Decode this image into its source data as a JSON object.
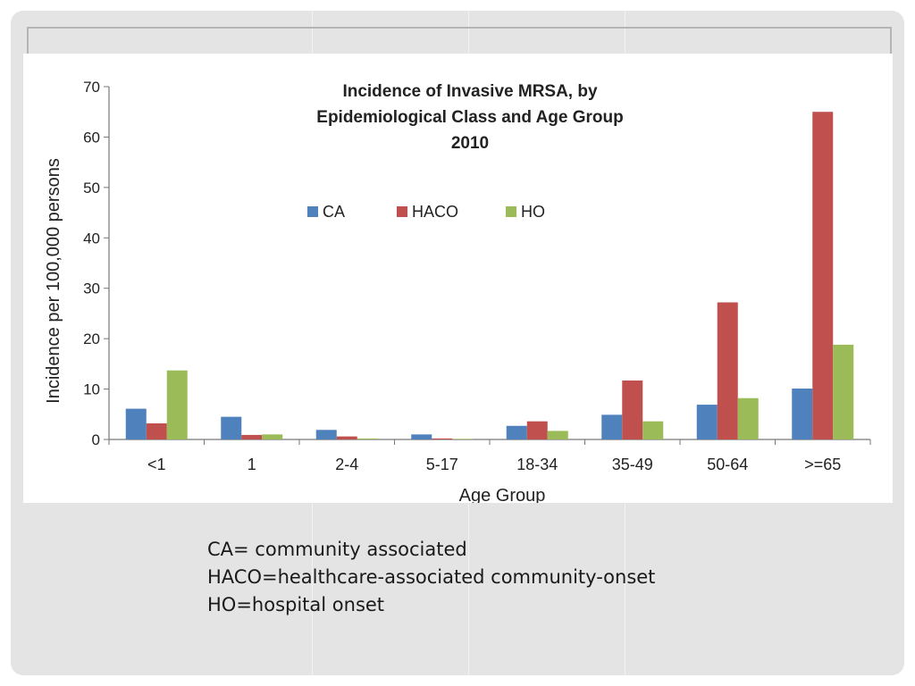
{
  "chart_data": {
    "type": "bar",
    "title_lines": [
      "Incidence of Invasive MRSA, by",
      "Epidemiological Class and Age Group",
      "2010"
    ],
    "xlabel": "Age Group",
    "ylabel": "Incidence per 100,000 persons",
    "categories": [
      "<1",
      "1",
      "2-4",
      "5-17",
      "18-34",
      "35-49",
      "50-64",
      ">=65"
    ],
    "series": [
      {
        "name": "CA",
        "color": "#4f81bd",
        "values": [
          6.1,
          4.5,
          1.9,
          1.0,
          2.7,
          4.9,
          6.9,
          10.1
        ]
      },
      {
        "name": "HACO",
        "color": "#c0504d",
        "values": [
          3.2,
          0.9,
          0.6,
          0.2,
          3.6,
          11.7,
          27.2,
          65.0
        ]
      },
      {
        "name": "HO",
        "color": "#9bbb59",
        "values": [
          13.7,
          1.0,
          0.2,
          0.1,
          1.7,
          3.6,
          8.2,
          18.8
        ]
      }
    ],
    "ylim": [
      0,
      70
    ],
    "yticks": [
      0,
      10,
      20,
      30,
      40,
      50,
      60,
      70
    ],
    "legend_position": "top-center",
    "grid": false
  },
  "notes": [
    "CA= community associated",
    "HACO=healthcare-associated community-onset",
    "HO=hospital onset"
  ]
}
